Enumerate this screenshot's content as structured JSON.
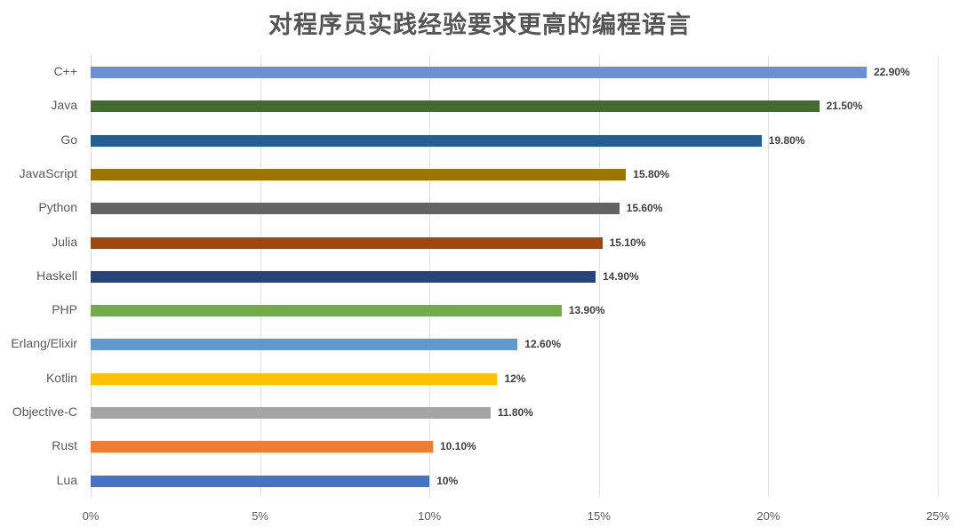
{
  "chart_data": {
    "type": "bar",
    "orientation": "horizontal",
    "title": "对程序员实践经验要求更高的编程语言",
    "xlabel": "",
    "ylabel": "",
    "xlim": [
      0,
      25
    ],
    "grid": true,
    "legend": null,
    "categories": [
      "C++",
      "Java",
      "Go",
      "JavaScript",
      "Python",
      "Julia",
      "Haskell",
      "PHP",
      "Erlang/Elixir",
      "Kotlin",
      "Objective-C",
      "Rust",
      "Lua"
    ],
    "values": [
      22.9,
      21.5,
      19.8,
      15.8,
      15.6,
      15.1,
      14.9,
      13.9,
      12.6,
      12.0,
      11.8,
      10.1,
      10.0
    ],
    "value_labels": [
      "22.90%",
      "21.50%",
      "19.80%",
      "15.80%",
      "15.60%",
      "15.10%",
      "14.90%",
      "13.90%",
      "12.60%",
      "12%",
      "11.80%",
      "10.10%",
      "10%"
    ],
    "colors": [
      "#6b8fd4",
      "#436b2e",
      "#255e91",
      "#9c7500",
      "#636363",
      "#9e480e",
      "#264478",
      "#70ad47",
      "#5b9bd5",
      "#ffc000",
      "#a5a5a5",
      "#ed7d31",
      "#4472c4"
    ],
    "x_ticks": [
      "0%",
      "5%",
      "10%",
      "15%",
      "20%",
      "25%"
    ],
    "x_tick_values": [
      0,
      5,
      10,
      15,
      20,
      25
    ]
  }
}
